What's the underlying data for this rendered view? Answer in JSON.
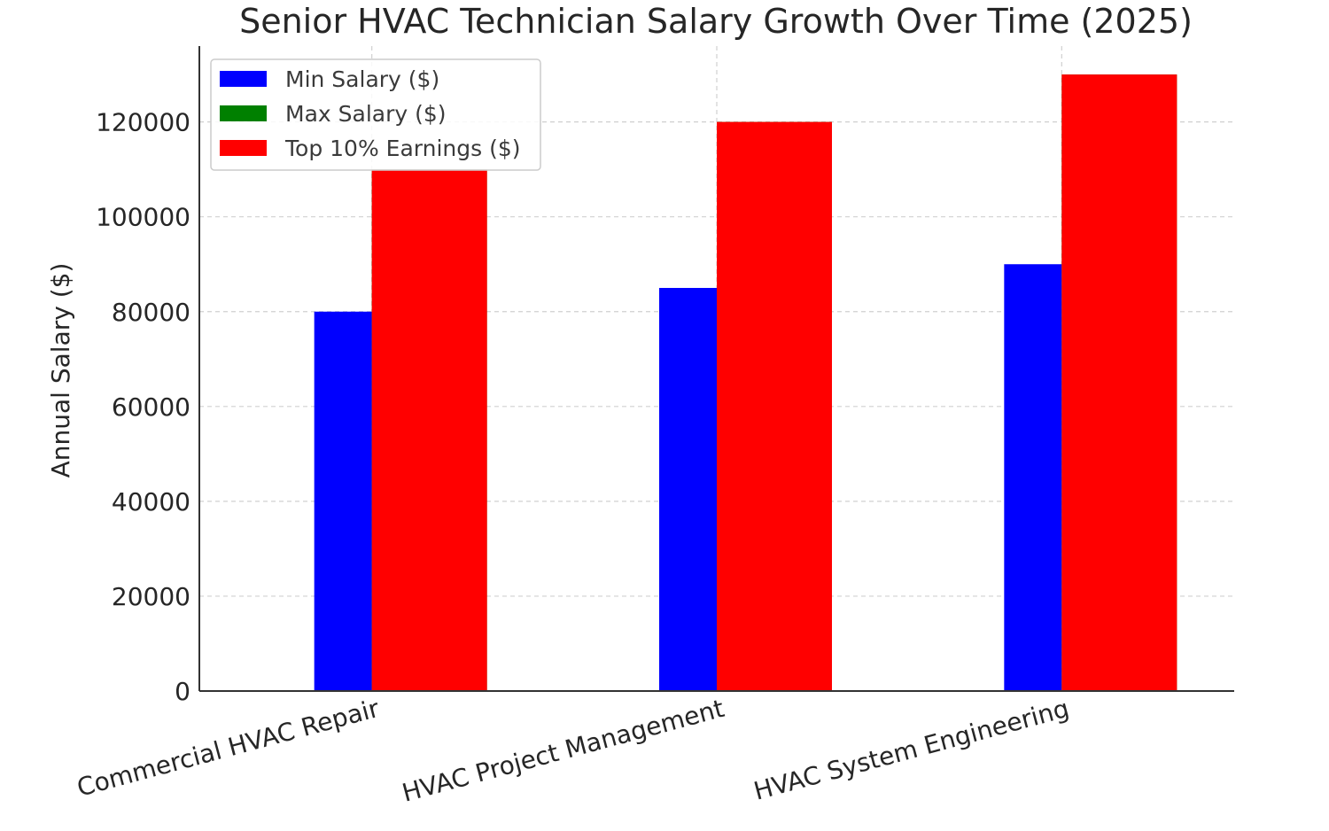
{
  "chart_data": {
    "type": "bar",
    "title": "Senior HVAC Technician Salary Growth Over Time (2025)",
    "xlabel": "",
    "ylabel": "Annual Salary ($)",
    "categories": [
      "Commercial HVAC Repair",
      "HVAC Project Management",
      "HVAC System Engineering"
    ],
    "series": [
      {
        "name": "Min Salary ($)",
        "values": [
          80000,
          85000,
          90000
        ],
        "color": "#0000ff"
      },
      {
        "name": "Max Salary ($)",
        "values": [
          110000,
          120000,
          130000
        ],
        "color": "#008000"
      },
      {
        "name": "Top 10% Earnings ($)",
        "values": [
          110000,
          120000,
          130000
        ],
        "color": "#ff0000"
      }
    ],
    "ylim": [
      0,
      136000
    ],
    "yticks": [
      0,
      20000,
      40000,
      60000,
      80000,
      100000,
      120000
    ],
    "grid": true,
    "legend": "upper-left"
  }
}
